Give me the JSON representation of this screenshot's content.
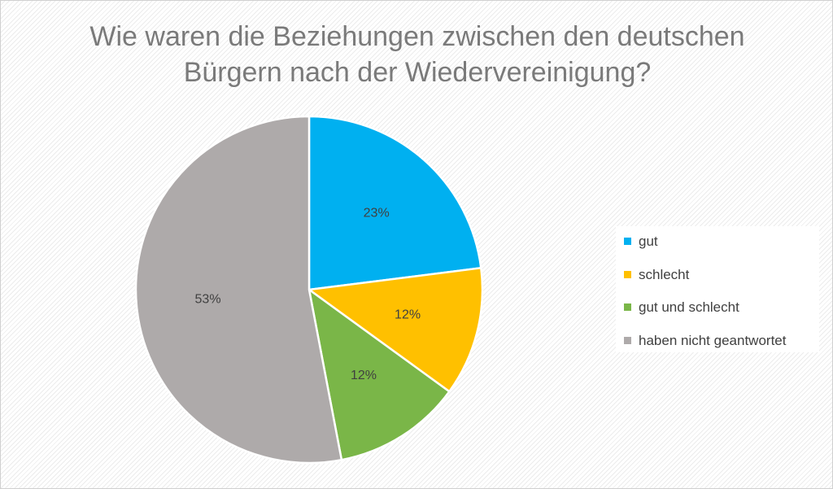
{
  "chart_data": {
    "type": "pie",
    "title": "Wie waren die Beziehungen zwischen den deutschen Bürgern nach der Wiedervereinigung?",
    "title_lines": [
      "Wie waren die Beziehungen zwischen den deutschen",
      "Bürgern nach der Wiedervereinigung?"
    ],
    "legend_position": "right",
    "slices": [
      {
        "label": "gut",
        "value": 23,
        "value_label": "23%",
        "color": "#00b0f0"
      },
      {
        "label": "schlecht",
        "value": 12,
        "value_label": "12%",
        "color": "#ffc000"
      },
      {
        "label": "gut und schlecht",
        "value": 12,
        "value_label": "12%",
        "color": "#7ab648"
      },
      {
        "label": "haben nicht geantwortet",
        "value": 53,
        "value_label": "53%",
        "color": "#aeaaaa"
      }
    ]
  }
}
